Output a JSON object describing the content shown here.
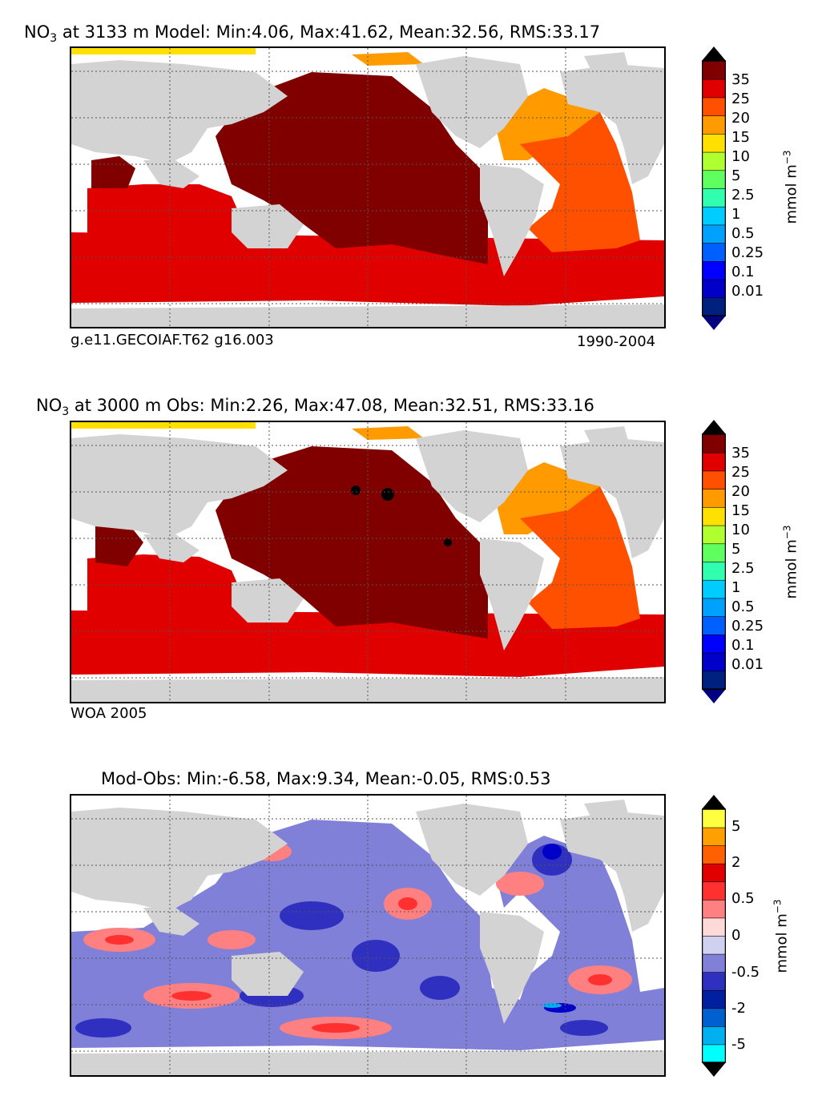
{
  "panels": [
    {
      "id": "model",
      "title_var": "NO",
      "title_sub": "3",
      "title_rest": " at 3133 m Model: Min:4.06, Max:41.62, Mean:32.56, RMS:33.17",
      "caption_left": "g.e11.GECOIAF.T62 g16.003",
      "caption_right": "1990-2004",
      "colorbar": {
        "ticks": [
          "35",
          "25",
          "20",
          "15",
          "10",
          "5",
          "2.5",
          "1",
          "0.5",
          "0.25",
          "0.1",
          "0.01"
        ],
        "colors": [
          "#002080",
          "#0000c8",
          "#0000ff",
          "#0060ff",
          "#00a0ff",
          "#00ccff",
          "#30ffb0",
          "#60ff60",
          "#b0ff30",
          "#ffe000",
          "#ff9a00",
          "#ff5000",
          "#e00000",
          "#800000"
        ],
        "label_main": "mmol m",
        "label_sup": "−3"
      }
    },
    {
      "id": "obs",
      "title_var": "NO",
      "title_sub": "3",
      "title_rest": " at 3000 m Obs: Min:2.26, Max:47.08, Mean:32.51, RMS:33.16",
      "caption_left": "WOA 2005",
      "caption_right": "",
      "colorbar": {
        "ticks": [
          "35",
          "25",
          "20",
          "15",
          "10",
          "5",
          "2.5",
          "1",
          "0.5",
          "0.25",
          "0.1",
          "0.01"
        ],
        "colors": [
          "#002080",
          "#0000c8",
          "#0000ff",
          "#0060ff",
          "#00a0ff",
          "#00ccff",
          "#30ffb0",
          "#60ff60",
          "#b0ff30",
          "#ffe000",
          "#ff9a00",
          "#ff5000",
          "#e00000",
          "#800000"
        ],
        "label_main": "mmol m",
        "label_sup": "−3"
      }
    },
    {
      "id": "diff",
      "title_var": "",
      "title_sub": "",
      "title_rest": "Mod-Obs: Min:-6.58, Max:9.34, Mean:-0.05, RMS:0.53",
      "caption_left": "",
      "caption_right": "",
      "colorbar": {
        "ticks": [
          "5",
          "2",
          "0.5",
          "0",
          "-0.5",
          "-2",
          "-5"
        ],
        "colors": [
          "#00ffff",
          "#00b0f0",
          "#0060d0",
          "#0020a0",
          "#3030c0",
          "#8080d8",
          "#d0d0f0",
          "#ffd8d8",
          "#ff8080",
          "#ff3030",
          "#e00000",
          "#ff6000",
          "#ffa000",
          "#ffff40"
        ],
        "label_main": "mmol m",
        "label_sup": "−3"
      }
    }
  ],
  "colors": {
    "land": "#d3d3d3",
    "model_pacific": "#800000",
    "model_southern": "#e00000",
    "model_atlantic_north": "#ff9a00",
    "model_atlantic_south": "#ff5000",
    "model_arctic": "#ffe000",
    "diff_neg": "#8080d8",
    "diff_pos": "#ff8080"
  }
}
